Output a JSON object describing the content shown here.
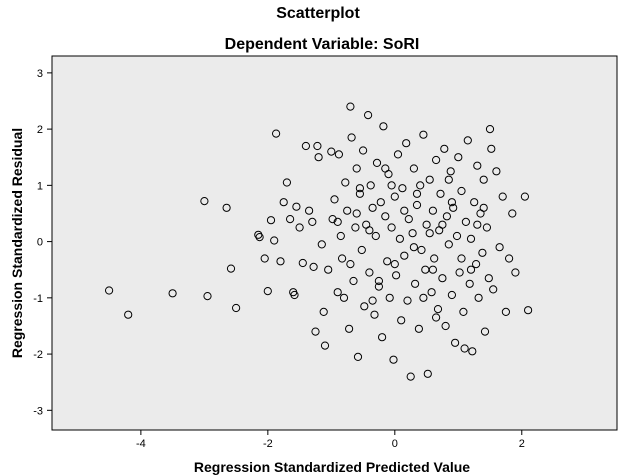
{
  "chart_data": {
    "type": "scatter",
    "title": "Scatterplot",
    "subtitle": "Dependent Variable: SoRI",
    "xlabel": "Regression Standardized Predicted Value",
    "ylabel": "Regression Standardized Residual",
    "xlim": [
      -5.4,
      3.5
    ],
    "ylim": [
      -3.35,
      3.3
    ],
    "x_ticks": [
      -4,
      -2,
      0,
      2
    ],
    "x_tick_labels": [
      "-4",
      "-2",
      "0",
      "2"
    ],
    "y_ticks": [
      3,
      2,
      1,
      0,
      -1,
      -2,
      -3
    ],
    "y_tick_labels": [
      "3",
      "2",
      "1",
      "0",
      "-1",
      "-2",
      "-3"
    ],
    "grid": false,
    "legend": "none",
    "colors": {
      "plot_background": "#ebebeb",
      "marker_stroke": "#000000",
      "frame": "#000000"
    },
    "points": [
      [
        -4.5,
        -0.87
      ],
      [
        -4.2,
        -1.3
      ],
      [
        -3.5,
        -0.92
      ],
      [
        -3.0,
        0.72
      ],
      [
        -2.95,
        -0.97
      ],
      [
        -2.65,
        0.6
      ],
      [
        -2.58,
        -0.48
      ],
      [
        -2.5,
        -1.18
      ],
      [
        -2.15,
        0.12
      ],
      [
        -2.13,
        0.08
      ],
      [
        -2.05,
        -0.3
      ],
      [
        -2.0,
        -0.88
      ],
      [
        -1.95,
        0.38
      ],
      [
        -1.9,
        0.02
      ],
      [
        -1.87,
        1.92
      ],
      [
        -1.8,
        -0.35
      ],
      [
        -1.75,
        0.7
      ],
      [
        -1.7,
        1.05
      ],
      [
        -1.65,
        0.4
      ],
      [
        -1.6,
        -0.9
      ],
      [
        -1.58,
        -0.95
      ],
      [
        -1.55,
        0.62
      ],
      [
        -1.5,
        0.25
      ],
      [
        -1.45,
        -0.38
      ],
      [
        -1.4,
        1.7
      ],
      [
        -1.35,
        0.55
      ],
      [
        -1.3,
        0.35
      ],
      [
        -1.28,
        -0.45
      ],
      [
        -1.25,
        -1.6
      ],
      [
        -1.22,
        1.7
      ],
      [
        -1.2,
        1.5
      ],
      [
        -1.15,
        -0.05
      ],
      [
        -1.12,
        -1.25
      ],
      [
        -1.1,
        -1.85
      ],
      [
        -1.05,
        -0.5
      ],
      [
        -1.0,
        1.6
      ],
      [
        -0.98,
        0.4
      ],
      [
        -0.95,
        0.75
      ],
      [
        -0.9,
        -0.9
      ],
      [
        -0.88,
        1.55
      ],
      [
        -0.85,
        0.1
      ],
      [
        -0.83,
        -0.3
      ],
      [
        -0.8,
        -1.0
      ],
      [
        -0.78,
        1.05
      ],
      [
        -0.75,
        0.55
      ],
      [
        -0.72,
        -1.55
      ],
      [
        -0.7,
        2.4
      ],
      [
        -0.68,
        1.85
      ],
      [
        -0.65,
        -0.7
      ],
      [
        -0.62,
        0.25
      ],
      [
        -0.6,
        1.3
      ],
      [
        -0.58,
        -2.05
      ],
      [
        -0.55,
        0.85
      ],
      [
        -0.52,
        -0.15
      ],
      [
        -0.5,
        1.62
      ],
      [
        -0.48,
        -1.15
      ],
      [
        -0.45,
        0.3
      ],
      [
        -0.42,
        2.25
      ],
      [
        -0.4,
        -0.55
      ],
      [
        -0.38,
        1.0
      ],
      [
        -0.35,
        0.6
      ],
      [
        -0.32,
        -1.3
      ],
      [
        -0.3,
        0.1
      ],
      [
        -0.28,
        1.4
      ],
      [
        -0.25,
        -0.8
      ],
      [
        -0.22,
        0.7
      ],
      [
        -0.2,
        -1.7
      ],
      [
        -0.18,
        2.05
      ],
      [
        -0.15,
        0.45
      ],
      [
        -0.12,
        -0.35
      ],
      [
        -0.1,
        1.2
      ],
      [
        -0.08,
        -1.0
      ],
      [
        -0.05,
        0.25
      ],
      [
        -0.02,
        -2.1
      ],
      [
        0.0,
        0.8
      ],
      [
        0.02,
        -0.6
      ],
      [
        0.05,
        1.55
      ],
      [
        0.08,
        0.05
      ],
      [
        0.1,
        -1.4
      ],
      [
        0.12,
        0.95
      ],
      [
        0.15,
        -0.25
      ],
      [
        0.18,
        1.75
      ],
      [
        0.2,
        -1.05
      ],
      [
        0.22,
        0.4
      ],
      [
        0.25,
        -2.4
      ],
      [
        0.28,
        0.15
      ],
      [
        0.3,
        1.3
      ],
      [
        0.32,
        -0.75
      ],
      [
        0.35,
        0.65
      ],
      [
        0.38,
        -1.55
      ],
      [
        0.4,
        1.0
      ],
      [
        0.42,
        -0.15
      ],
      [
        0.45,
        1.9
      ],
      [
        0.48,
        -0.5
      ],
      [
        0.5,
        0.3
      ],
      [
        0.52,
        -2.35
      ],
      [
        0.55,
        1.1
      ],
      [
        0.58,
        -0.9
      ],
      [
        0.6,
        0.55
      ],
      [
        0.62,
        -0.3
      ],
      [
        0.65,
        1.45
      ],
      [
        0.68,
        -1.2
      ],
      [
        0.7,
        0.2
      ],
      [
        0.72,
        0.85
      ],
      [
        0.75,
        -0.65
      ],
      [
        0.78,
        1.65
      ],
      [
        0.8,
        -1.5
      ],
      [
        0.82,
        0.45
      ],
      [
        0.85,
        -0.05
      ],
      [
        0.88,
        1.25
      ],
      [
        0.9,
        -0.95
      ],
      [
        0.92,
        0.6
      ],
      [
        0.95,
        -1.8
      ],
      [
        0.98,
        0.1
      ],
      [
        1.0,
        1.5
      ],
      [
        1.02,
        -0.55
      ],
      [
        1.05,
        0.9
      ],
      [
        1.08,
        -1.25
      ],
      [
        1.1,
        -1.9
      ],
      [
        1.12,
        0.35
      ],
      [
        1.15,
        1.8
      ],
      [
        1.18,
        -0.75
      ],
      [
        1.2,
        0.05
      ],
      [
        1.22,
        -1.95
      ],
      [
        1.25,
        0.7
      ],
      [
        1.28,
        -0.4
      ],
      [
        1.3,
        1.35
      ],
      [
        1.32,
        -1.0
      ],
      [
        1.35,
        0.5
      ],
      [
        1.38,
        -0.2
      ],
      [
        1.4,
        1.1
      ],
      [
        1.42,
        -1.6
      ],
      [
        1.45,
        0.25
      ],
      [
        1.48,
        -0.65
      ],
      [
        1.5,
        2.0
      ],
      [
        1.52,
        1.65
      ],
      [
        1.55,
        -0.85
      ],
      [
        1.6,
        1.25
      ],
      [
        1.65,
        -0.1
      ],
      [
        1.7,
        0.8
      ],
      [
        1.75,
        -1.25
      ],
      [
        1.8,
        -0.3
      ],
      [
        1.85,
        0.5
      ],
      [
        1.9,
        -0.55
      ],
      [
        2.05,
        0.8
      ],
      [
        2.1,
        -1.22
      ],
      [
        -0.05,
        1.0
      ],
      [
        0.3,
        -0.1
      ],
      [
        0.6,
        -0.5
      ],
      [
        -0.4,
        0.2
      ],
      [
        0.9,
        0.7
      ],
      [
        -0.7,
        -0.4
      ],
      [
        1.3,
        0.3
      ],
      [
        0.15,
        0.55
      ],
      [
        -0.25,
        -0.7
      ],
      [
        0.75,
        0.3
      ],
      [
        -0.55,
        0.95
      ],
      [
        1.05,
        -0.3
      ],
      [
        0.45,
        -1.0
      ],
      [
        -0.15,
        1.3
      ],
      [
        0.85,
        1.1
      ],
      [
        -0.9,
        0.35
      ],
      [
        1.2,
        -0.5
      ],
      [
        0.35,
        0.85
      ],
      [
        -0.35,
        -1.05
      ],
      [
        0.65,
        -1.35
      ],
      [
        0.0,
        -0.4
      ],
      [
        -0.6,
        0.5
      ],
      [
        1.4,
        0.6
      ],
      [
        0.55,
        0.15
      ]
    ]
  }
}
